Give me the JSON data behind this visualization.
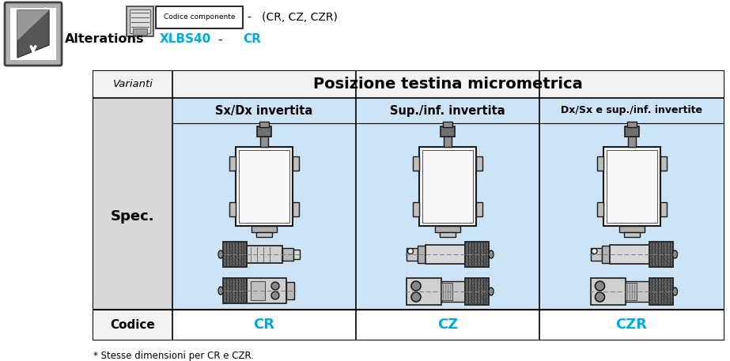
{
  "title_text": "Alterations",
  "codice_label": "Codice componente",
  "codes_text": "-   (CR, CZ, CZR)",
  "xlbs_text": "XLBS40",
  "dash_text": "-",
  "cr_text": "CR",
  "table_header_left": "Varianti",
  "table_header_right": "Posizione testina micrometrica",
  "col1_header": "Sx/Dx invertita",
  "col2_header": "Sup./inf. invertita",
  "col3_header": "Dx/Sx e sup./inf. invertite",
  "row_label": "Spec.",
  "codice_row_label": "Codice",
  "code_cr": "CR",
  "code_cz": "CZ",
  "code_czr": "CZR",
  "footnote": "* Stesse dimensioni per CR e CZR.",
  "cell_bg": "#cce4f5",
  "white": "#ffffff",
  "border_color": "#000000",
  "cyan_color": "#00aadd",
  "gray_col": "#d8d8d8",
  "figure_width": 9.23,
  "figure_height": 4.57
}
